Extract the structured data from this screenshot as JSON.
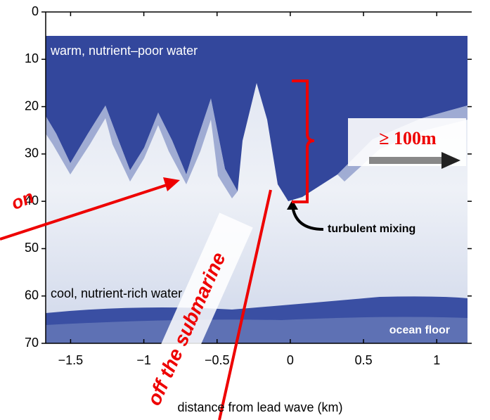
{
  "chart_data": {
    "type": "image",
    "xlabel": "distance from lead wave (km)",
    "xlim": [
      -1.67,
      1.21
    ],
    "xticks": [
      {
        "value": -1.5,
        "label": "−1.5"
      },
      {
        "value": -1,
        "label": "−1"
      },
      {
        "value": -0.5,
        "label": "−0.5"
      },
      0,
      0.5,
      1
    ],
    "ylim": [
      0,
      70
    ],
    "yticks": [
      0,
      10,
      20,
      30,
      40,
      50,
      60,
      70
    ],
    "annotations": [
      "warm, nutrient–poor water",
      "cool, nutrient-rich water",
      "ocean floor",
      "turbulent mixing",
      "≥ 100m",
      "off the submarine",
      "on"
    ]
  }
}
